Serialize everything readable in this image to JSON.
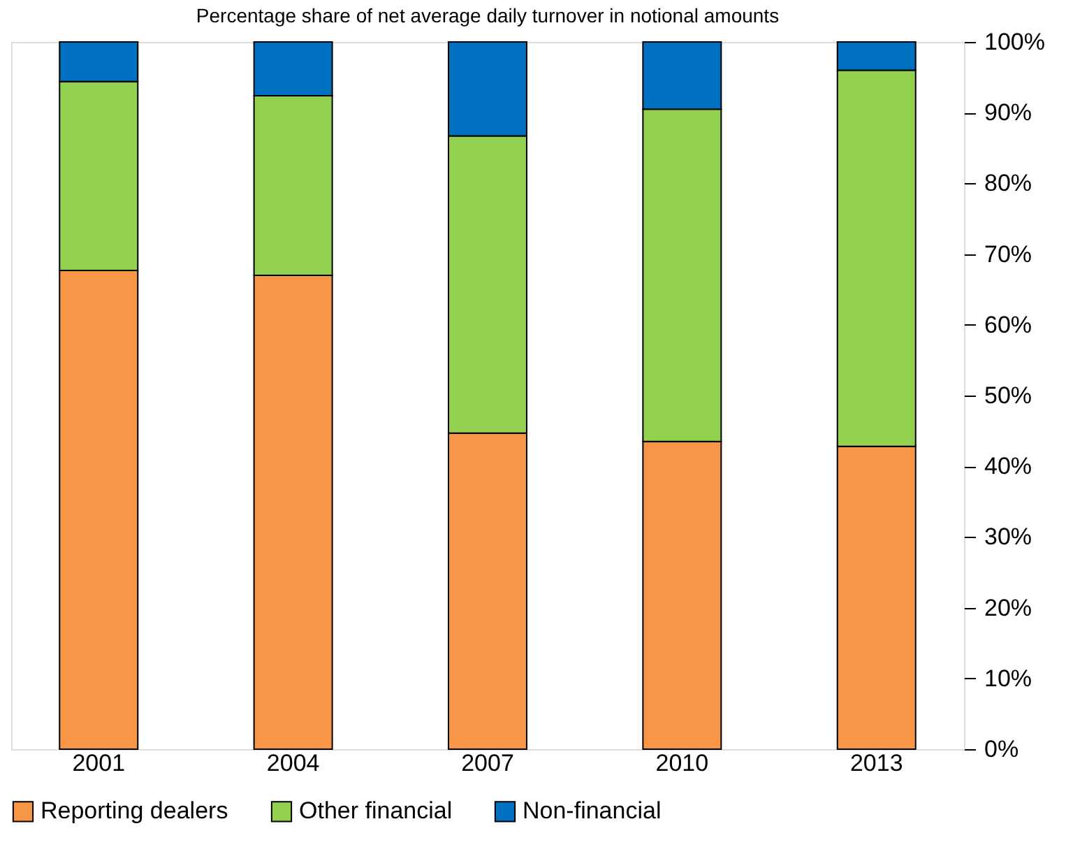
{
  "chart_data": {
    "type": "bar",
    "stacked": true,
    "title": "Percentage share of net average daily turnover in notional amounts",
    "categories": [
      "2001",
      "2004",
      "2007",
      "2010",
      "2013"
    ],
    "series": [
      {
        "name": "Reporting dealers",
        "color": "#f79646",
        "values": [
          67.7,
          67.0,
          44.7,
          43.5,
          42.8
        ]
      },
      {
        "name": "Other financial",
        "color": "#92d050",
        "values": [
          26.7,
          25.4,
          42.0,
          47.0,
          53.2
        ]
      },
      {
        "name": "Non-financial",
        "color": "#0070c0",
        "values": [
          5.6,
          7.6,
          13.3,
          9.5,
          4.0
        ]
      }
    ],
    "ylim": [
      0,
      100
    ],
    "yticks": [
      {
        "value": 0,
        "label": "0%"
      },
      {
        "value": 10,
        "label": "10%"
      },
      {
        "value": 20,
        "label": "20%"
      },
      {
        "value": 30,
        "label": "30%"
      },
      {
        "value": 40,
        "label": "40%"
      },
      {
        "value": 50,
        "label": "50%"
      },
      {
        "value": 60,
        "label": "60%"
      },
      {
        "value": 70,
        "label": "70%"
      },
      {
        "value": 80,
        "label": "80%"
      },
      {
        "value": 90,
        "label": "90%"
      },
      {
        "value": 100,
        "label": "100%"
      }
    ],
    "grid": false,
    "legend": "bottom"
  }
}
